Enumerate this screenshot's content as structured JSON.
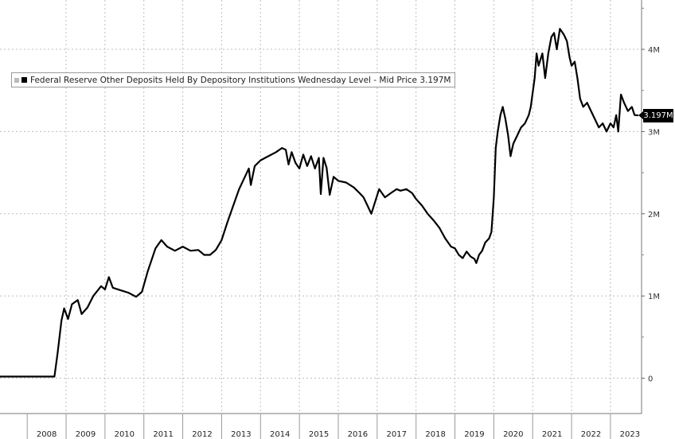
{
  "chart_data": {
    "type": "line",
    "title": "",
    "legend": {
      "label": "Federal Reserve Other Deposits Held By Depository Institutions Wednesday Level - Mid Price 3.197M",
      "placement": "top-left"
    },
    "last_value_label": "3.197M",
    "xlabel": "",
    "ylabel": "",
    "x_ticks": [
      "2008",
      "2009",
      "2010",
      "2011",
      "2012",
      "2013",
      "2014",
      "2015",
      "2016",
      "2017",
      "2018",
      "2019",
      "2020",
      "2021",
      "2022",
      "2023"
    ],
    "y_ticks": [
      {
        "value": 0,
        "label": "0"
      },
      {
        "value": 1000000,
        "label": "1M"
      },
      {
        "value": 2000000,
        "label": "2M"
      },
      {
        "value": 3000000,
        "label": "3M"
      },
      {
        "value": 4000000,
        "label": "4M"
      }
    ],
    "xlim": [
      2007.3,
      2023.8
    ],
    "ylim": [
      -430000,
      4600000
    ],
    "grid": true,
    "line_color": "#000000",
    "series": [
      {
        "name": "Federal Reserve Other Deposits Held By Depository Institutions Wednesday Level",
        "points": [
          [
            2007.3,
            20000
          ],
          [
            2008.0,
            20000
          ],
          [
            2008.5,
            20000
          ],
          [
            2008.7,
            20000
          ],
          [
            2008.78,
            300000
          ],
          [
            2008.88,
            700000
          ],
          [
            2008.95,
            850000
          ],
          [
            2009.05,
            720000
          ],
          [
            2009.15,
            900000
          ],
          [
            2009.3,
            950000
          ],
          [
            2009.4,
            780000
          ],
          [
            2009.55,
            860000
          ],
          [
            2009.7,
            1000000
          ],
          [
            2009.9,
            1120000
          ],
          [
            2010.0,
            1080000
          ],
          [
            2010.1,
            1230000
          ],
          [
            2010.2,
            1100000
          ],
          [
            2010.4,
            1070000
          ],
          [
            2010.6,
            1040000
          ],
          [
            2010.8,
            990000
          ],
          [
            2010.95,
            1050000
          ],
          [
            2011.1,
            1300000
          ],
          [
            2011.3,
            1580000
          ],
          [
            2011.45,
            1680000
          ],
          [
            2011.6,
            1600000
          ],
          [
            2011.8,
            1550000
          ],
          [
            2012.0,
            1600000
          ],
          [
            2012.2,
            1550000
          ],
          [
            2012.4,
            1560000
          ],
          [
            2012.55,
            1500000
          ],
          [
            2012.7,
            1500000
          ],
          [
            2012.85,
            1560000
          ],
          [
            2013.0,
            1680000
          ],
          [
            2013.15,
            1900000
          ],
          [
            2013.3,
            2100000
          ],
          [
            2013.45,
            2300000
          ],
          [
            2013.6,
            2450000
          ],
          [
            2013.7,
            2550000
          ],
          [
            2013.75,
            2350000
          ],
          [
            2013.85,
            2580000
          ],
          [
            2014.0,
            2650000
          ],
          [
            2014.2,
            2700000
          ],
          [
            2014.4,
            2750000
          ],
          [
            2014.55,
            2800000
          ],
          [
            2014.65,
            2780000
          ],
          [
            2014.72,
            2600000
          ],
          [
            2014.8,
            2750000
          ],
          [
            2014.9,
            2620000
          ],
          [
            2015.0,
            2550000
          ],
          [
            2015.1,
            2720000
          ],
          [
            2015.2,
            2580000
          ],
          [
            2015.3,
            2700000
          ],
          [
            2015.4,
            2550000
          ],
          [
            2015.5,
            2680000
          ],
          [
            2015.55,
            2240000
          ],
          [
            2015.62,
            2680000
          ],
          [
            2015.7,
            2560000
          ],
          [
            2015.78,
            2230000
          ],
          [
            2015.88,
            2450000
          ],
          [
            2016.0,
            2400000
          ],
          [
            2016.2,
            2380000
          ],
          [
            2016.4,
            2320000
          ],
          [
            2016.55,
            2250000
          ],
          [
            2016.65,
            2200000
          ],
          [
            2016.75,
            2100000
          ],
          [
            2016.85,
            2000000
          ],
          [
            2016.95,
            2150000
          ],
          [
            2017.05,
            2300000
          ],
          [
            2017.2,
            2200000
          ],
          [
            2017.35,
            2250000
          ],
          [
            2017.5,
            2300000
          ],
          [
            2017.6,
            2280000
          ],
          [
            2017.75,
            2300000
          ],
          [
            2017.9,
            2250000
          ],
          [
            2018.0,
            2180000
          ],
          [
            2018.15,
            2100000
          ],
          [
            2018.3,
            2000000
          ],
          [
            2018.45,
            1920000
          ],
          [
            2018.6,
            1830000
          ],
          [
            2018.75,
            1700000
          ],
          [
            2018.9,
            1600000
          ],
          [
            2019.0,
            1580000
          ],
          [
            2019.1,
            1500000
          ],
          [
            2019.2,
            1460000
          ],
          [
            2019.3,
            1540000
          ],
          [
            2019.4,
            1480000
          ],
          [
            2019.5,
            1450000
          ],
          [
            2019.55,
            1400000
          ],
          [
            2019.62,
            1500000
          ],
          [
            2019.7,
            1550000
          ],
          [
            2019.78,
            1650000
          ],
          [
            2019.88,
            1700000
          ],
          [
            2019.94,
            1780000
          ],
          [
            2020.0,
            2200000
          ],
          [
            2020.05,
            2800000
          ],
          [
            2020.1,
            3000000
          ],
          [
            2020.17,
            3200000
          ],
          [
            2020.23,
            3300000
          ],
          [
            2020.3,
            3150000
          ],
          [
            2020.37,
            2950000
          ],
          [
            2020.43,
            2700000
          ],
          [
            2020.5,
            2850000
          ],
          [
            2020.6,
            2950000
          ],
          [
            2020.7,
            3050000
          ],
          [
            2020.8,
            3100000
          ],
          [
            2020.9,
            3200000
          ],
          [
            2020.95,
            3300000
          ],
          [
            2021.05,
            3650000
          ],
          [
            2021.1,
            3950000
          ],
          [
            2021.15,
            3800000
          ],
          [
            2021.25,
            3950000
          ],
          [
            2021.32,
            3650000
          ],
          [
            2021.4,
            3950000
          ],
          [
            2021.48,
            4150000
          ],
          [
            2021.55,
            4200000
          ],
          [
            2021.62,
            4000000
          ],
          [
            2021.7,
            4250000
          ],
          [
            2021.8,
            4180000
          ],
          [
            2021.88,
            4100000
          ],
          [
            2021.95,
            3900000
          ],
          [
            2022.0,
            3800000
          ],
          [
            2022.08,
            3850000
          ],
          [
            2022.15,
            3650000
          ],
          [
            2022.22,
            3400000
          ],
          [
            2022.3,
            3300000
          ],
          [
            2022.4,
            3350000
          ],
          [
            2022.5,
            3250000
          ],
          [
            2022.6,
            3150000
          ],
          [
            2022.7,
            3050000
          ],
          [
            2022.8,
            3100000
          ],
          [
            2022.9,
            3000000
          ],
          [
            2023.0,
            3100000
          ],
          [
            2023.08,
            3050000
          ],
          [
            2023.15,
            3200000
          ],
          [
            2023.2,
            3000000
          ],
          [
            2023.27,
            3450000
          ],
          [
            2023.35,
            3350000
          ],
          [
            2023.45,
            3250000
          ],
          [
            2023.55,
            3300000
          ],
          [
            2023.62,
            3200000
          ],
          [
            2023.7,
            3197000
          ]
        ]
      }
    ]
  }
}
